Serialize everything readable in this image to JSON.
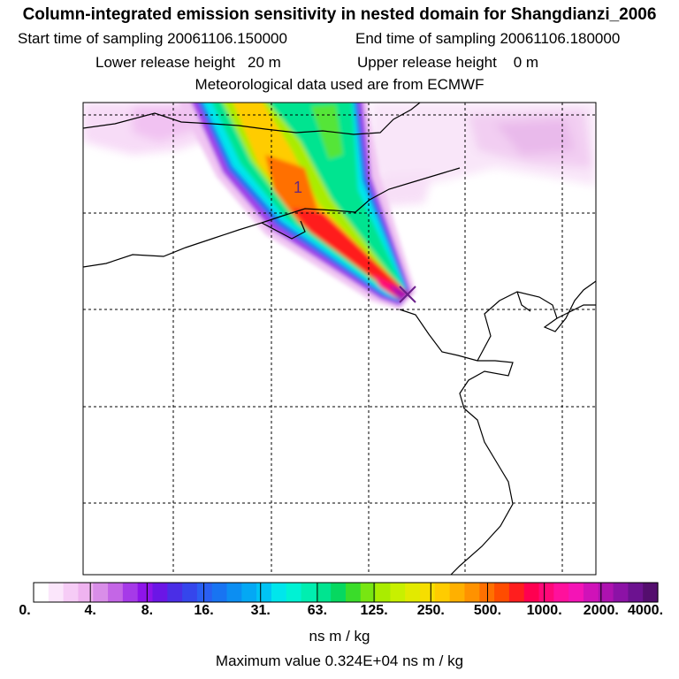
{
  "header": {
    "title": "Column-integrated emission sensitivity in nested domain for Shangdianzi_2006",
    "start_label": "Start time of sampling 20061106.150000",
    "end_label": "End time of sampling 20061106.180000",
    "lower_label": "Lower release height   20 m",
    "upper_label": "Upper release height    0 m",
    "met_label": "Meteorological data used are from ECMWF"
  },
  "map": {
    "contour_label": "1",
    "release_site": "Shangdianzi"
  },
  "colorbar": {
    "tick_labels": [
      "0.",
      "4.",
      "8.",
      "16.",
      "31.",
      "63.",
      "125.",
      "250.",
      "500.",
      "1000.",
      "2000.",
      "4000."
    ],
    "colors": [
      "#ffffff",
      "#fbe6fb",
      "#f6ccf6",
      "#efb3f0",
      "#d98ee8",
      "#c466e6",
      "#a63ae8",
      "#8e14ea",
      "#6b16e6",
      "#4a2ee6",
      "#3546ec",
      "#2a5ff2",
      "#1874f2",
      "#0c8ef2",
      "#04a8f4",
      "#00c4f4",
      "#00e6ec",
      "#00f2d4",
      "#00eeb0",
      "#00e490",
      "#06d860",
      "#3adc2a",
      "#78e612",
      "#aaec00",
      "#c8f000",
      "#e2ea00",
      "#f6de00",
      "#ffcc00",
      "#ffb000",
      "#ff9200",
      "#ff7000",
      "#ff4c00",
      "#ff1e1e",
      "#ff0050",
      "#ff0878",
      "#ff109c",
      "#f414b6",
      "#d012b8",
      "#ae12b0",
      "#8c12a6",
      "#6c1290",
      "#540e6e"
    ],
    "units": "ns m / kg"
  },
  "footer": {
    "max_value": "Maximum value  0.324E+04 ns m / kg"
  }
}
